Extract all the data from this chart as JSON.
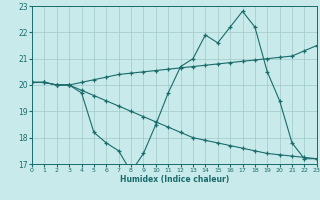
{
  "xlabel": "Humidex (Indice chaleur)",
  "background_color": "#c8eaea",
  "grid_color": "#a0c8c8",
  "line_color": "#1a6b6b",
  "line1_x": [
    0,
    1,
    2,
    3,
    4,
    5,
    6,
    7,
    8,
    9,
    10,
    11,
    12,
    13,
    14,
    15,
    16,
    17,
    18,
    19,
    20,
    21,
    22,
    23
  ],
  "line1_y": [
    20.1,
    20.1,
    20.0,
    20.0,
    19.7,
    18.2,
    17.8,
    17.5,
    16.7,
    17.4,
    18.5,
    19.7,
    20.7,
    21.0,
    21.9,
    21.6,
    22.2,
    22.8,
    22.2,
    20.5,
    19.4,
    17.8,
    17.2,
    17.2
  ],
  "line2_x": [
    0,
    1,
    2,
    3,
    4,
    5,
    6,
    7,
    8,
    9,
    10,
    11,
    12,
    13,
    14,
    15,
    16,
    17,
    18,
    19,
    20,
    21,
    22,
    23
  ],
  "line2_y": [
    20.1,
    20.1,
    20.0,
    20.0,
    20.1,
    20.2,
    20.3,
    20.4,
    20.45,
    20.5,
    20.55,
    20.6,
    20.65,
    20.7,
    20.75,
    20.8,
    20.85,
    20.9,
    20.95,
    21.0,
    21.05,
    21.1,
    21.3,
    21.5
  ],
  "line3_x": [
    0,
    1,
    2,
    3,
    4,
    5,
    6,
    7,
    8,
    9,
    10,
    11,
    12,
    13,
    14,
    15,
    16,
    17,
    18,
    19,
    20,
    21,
    22,
    23
  ],
  "line3_y": [
    20.1,
    20.1,
    20.0,
    20.0,
    19.8,
    19.6,
    19.4,
    19.2,
    19.0,
    18.8,
    18.6,
    18.4,
    18.2,
    18.0,
    17.9,
    17.8,
    17.7,
    17.6,
    17.5,
    17.4,
    17.35,
    17.3,
    17.25,
    17.2
  ],
  "ylim": [
    17.0,
    23.0
  ],
  "xlim": [
    0,
    23
  ],
  "yticks": [
    17,
    18,
    19,
    20,
    21,
    22,
    23
  ],
  "xticks": [
    0,
    1,
    2,
    3,
    4,
    5,
    6,
    7,
    8,
    9,
    10,
    11,
    12,
    13,
    14,
    15,
    16,
    17,
    18,
    19,
    20,
    21,
    22,
    23
  ]
}
